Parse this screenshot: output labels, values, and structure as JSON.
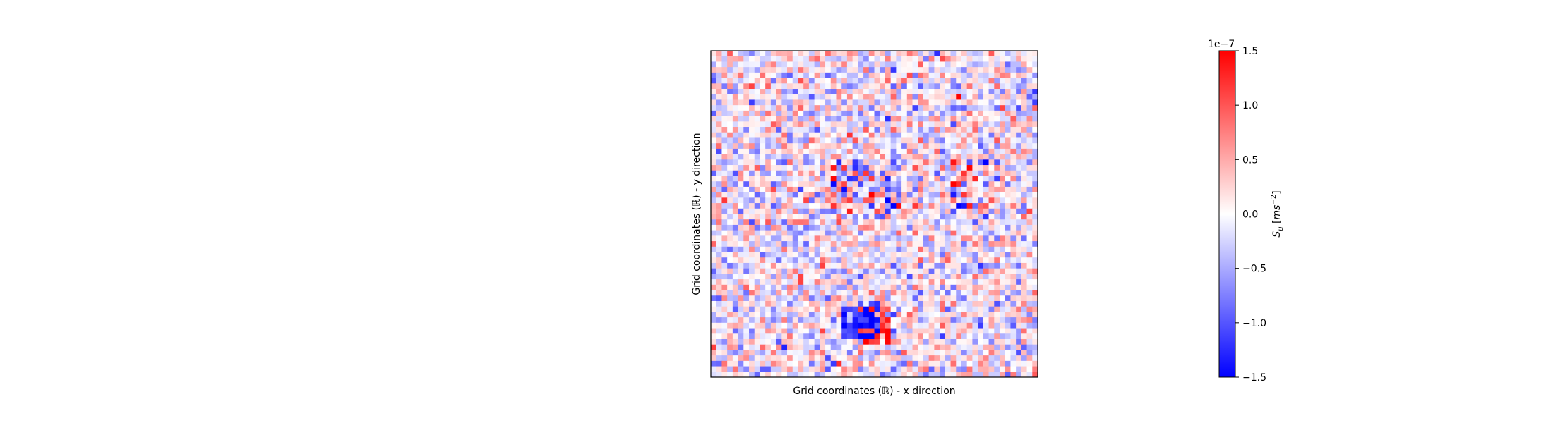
{
  "chart_data": {
    "type": "heatmap",
    "title": "",
    "xlabel": "Grid coordinates (ℝ) - x direction",
    "ylabel": "Grid coordinates (ℝ) - y direction",
    "x_ticks": [],
    "y_ticks": [],
    "grid": false,
    "grid_shape": [
      60,
      60
    ],
    "colormap": "bwr",
    "colormap_colors": [
      "#0000ff",
      "#ffffff",
      "#ff0000"
    ],
    "value_range": [
      -1.5e-07,
      1.5e-07
    ],
    "colorbar": {
      "label": "S_u [ms^-2]",
      "label_base": "S",
      "label_sub": "u",
      "label_unit_open": " [",
      "label_unit_base": "ms",
      "label_unit_exp": "−2",
      "label_unit_close": "]",
      "offset_text": "1e−7",
      "ticks": [
        -1.5,
        -1.0,
        -0.5,
        0.0,
        0.5,
        1.0,
        1.5
      ],
      "tick_labels": [
        "−1.5",
        "−1.0",
        "−0.5",
        "0.0",
        "0.5",
        "1.0",
        "1.5"
      ],
      "placement": "right"
    },
    "field_note_regions": [
      {
        "name": "strong-positive-cluster",
        "row_range": [
          47,
          53
        ],
        "col_range": [
          27,
          32
        ],
        "sign": "positive"
      },
      {
        "name": "strong-negative-cluster",
        "row_range": [
          46,
          52
        ],
        "col_range": [
          24,
          30
        ],
        "sign": "negative"
      },
      {
        "name": "mixed-cluster-center",
        "row_range": [
          20,
          30
        ],
        "col_range": [
          22,
          34
        ],
        "sign": "mixed"
      },
      {
        "name": "mixed-cluster-right",
        "row_range": [
          20,
          28
        ],
        "col_range": [
          44,
          50
        ],
        "sign": "mixed"
      }
    ]
  }
}
